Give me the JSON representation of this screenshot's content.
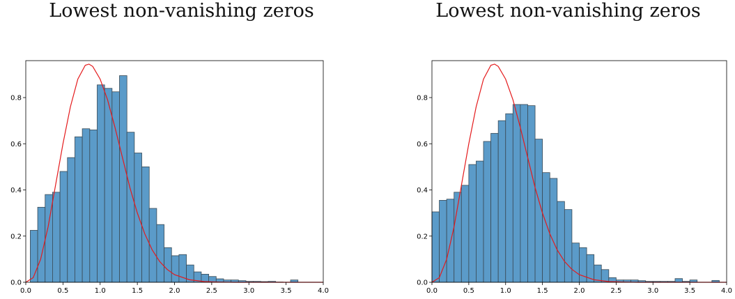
{
  "chart_data": [
    {
      "type": "bar",
      "title": "Lowest non-vanishing zeros",
      "xlabel": "",
      "ylabel": "",
      "xlim": [
        0.0,
        4.0
      ],
      "ylim": [
        0.0,
        0.96
      ],
      "xticks": [
        "0.0",
        "0.5",
        "1.0",
        "1.5",
        "2.0",
        "2.5",
        "3.0",
        "3.5",
        "4.0"
      ],
      "yticks": [
        "0.0",
        "0.2",
        "0.4",
        "0.6",
        "0.8"
      ],
      "bin_width": 0.1,
      "bin_starts": [
        0.06,
        0.16,
        0.26,
        0.36,
        0.46,
        0.56,
        0.66,
        0.76,
        0.86,
        0.96,
        1.06,
        1.16,
        1.26,
        1.36,
        1.46,
        1.56,
        1.66,
        1.76,
        1.86,
        1.96,
        2.06,
        2.16,
        2.26,
        2.36,
        2.46,
        2.56,
        2.66,
        2.76,
        2.86,
        2.96,
        3.06,
        3.16,
        3.26,
        3.36,
        3.46,
        3.56,
        3.66,
        3.76,
        3.86
      ],
      "values": [
        0.225,
        0.325,
        0.38,
        0.39,
        0.48,
        0.54,
        0.63,
        0.665,
        0.66,
        0.855,
        0.84,
        0.825,
        0.895,
        0.65,
        0.56,
        0.5,
        0.32,
        0.25,
        0.15,
        0.115,
        0.12,
        0.075,
        0.045,
        0.035,
        0.025,
        0.015,
        0.01,
        0.01,
        0.007,
        0.004,
        0.004,
        0.003,
        0.004,
        0.001,
        0.0,
        0.01,
        0.0,
        0.0,
        0.0
      ],
      "bar_color": "#5b9bc9",
      "bar_edge_color": "#3a4a55",
      "curve_color": "#e41a1c",
      "curve": {
        "x": [
          0.0,
          0.1,
          0.2,
          0.3,
          0.4,
          0.5,
          0.6,
          0.7,
          0.8,
          0.85,
          0.9,
          1.0,
          1.1,
          1.2,
          1.3,
          1.4,
          1.5,
          1.6,
          1.7,
          1.8,
          1.9,
          2.0,
          2.2,
          2.4,
          2.6,
          2.8,
          3.0,
          3.5,
          4.0
        ],
        "y": [
          0.0,
          0.02,
          0.1,
          0.24,
          0.42,
          0.6,
          0.76,
          0.88,
          0.94,
          0.945,
          0.935,
          0.88,
          0.79,
          0.67,
          0.54,
          0.41,
          0.3,
          0.21,
          0.14,
          0.09,
          0.056,
          0.033,
          0.011,
          0.003,
          0.001,
          0.0,
          0.0,
          0.0,
          0.0
        ]
      }
    },
    {
      "type": "bar",
      "title": "Lowest non-vanishing zeros",
      "xlabel": "",
      "ylabel": "",
      "xlim": [
        0.0,
        4.0
      ],
      "ylim": [
        0.0,
        0.96
      ],
      "xticks": [
        "0.0",
        "0.5",
        "1.0",
        "1.5",
        "2.0",
        "2.5",
        "3.0",
        "3.5",
        "4.0"
      ],
      "yticks": [
        "0.0",
        "0.2",
        "0.4",
        "0.6",
        "0.8"
      ],
      "bin_width": 0.1,
      "bin_starts": [
        0.0,
        0.1,
        0.2,
        0.3,
        0.4,
        0.5,
        0.6,
        0.7,
        0.8,
        0.9,
        1.0,
        1.1,
        1.2,
        1.3,
        1.4,
        1.5,
        1.6,
        1.7,
        1.8,
        1.9,
        2.0,
        2.1,
        2.2,
        2.3,
        2.4,
        2.5,
        2.6,
        2.7,
        2.8,
        2.9,
        3.0,
        3.1,
        3.2,
        3.3,
        3.4,
        3.5,
        3.6,
        3.7,
        3.8
      ],
      "values": [
        0.305,
        0.355,
        0.36,
        0.39,
        0.42,
        0.51,
        0.525,
        0.61,
        0.645,
        0.7,
        0.73,
        0.77,
        0.77,
        0.765,
        0.62,
        0.475,
        0.45,
        0.35,
        0.315,
        0.17,
        0.15,
        0.12,
        0.075,
        0.055,
        0.02,
        0.01,
        0.01,
        0.01,
        0.007,
        0.004,
        0.004,
        0.004,
        0.004,
        0.016,
        0.004,
        0.01,
        0.0,
        0.0,
        0.008
      ],
      "bar_color": "#5b9bc9",
      "bar_edge_color": "#3a4a55",
      "curve_color": "#e41a1c",
      "curve": {
        "x": [
          0.0,
          0.1,
          0.2,
          0.3,
          0.4,
          0.5,
          0.6,
          0.7,
          0.8,
          0.85,
          0.9,
          1.0,
          1.1,
          1.2,
          1.3,
          1.4,
          1.5,
          1.6,
          1.7,
          1.8,
          1.9,
          2.0,
          2.2,
          2.4,
          2.6,
          2.8,
          3.0,
          3.5,
          4.0
        ],
        "y": [
          0.0,
          0.02,
          0.1,
          0.24,
          0.42,
          0.6,
          0.76,
          0.88,
          0.94,
          0.945,
          0.935,
          0.88,
          0.79,
          0.67,
          0.54,
          0.41,
          0.3,
          0.21,
          0.14,
          0.09,
          0.056,
          0.033,
          0.011,
          0.003,
          0.001,
          0.0,
          0.0,
          0.0,
          0.0
        ]
      }
    }
  ]
}
